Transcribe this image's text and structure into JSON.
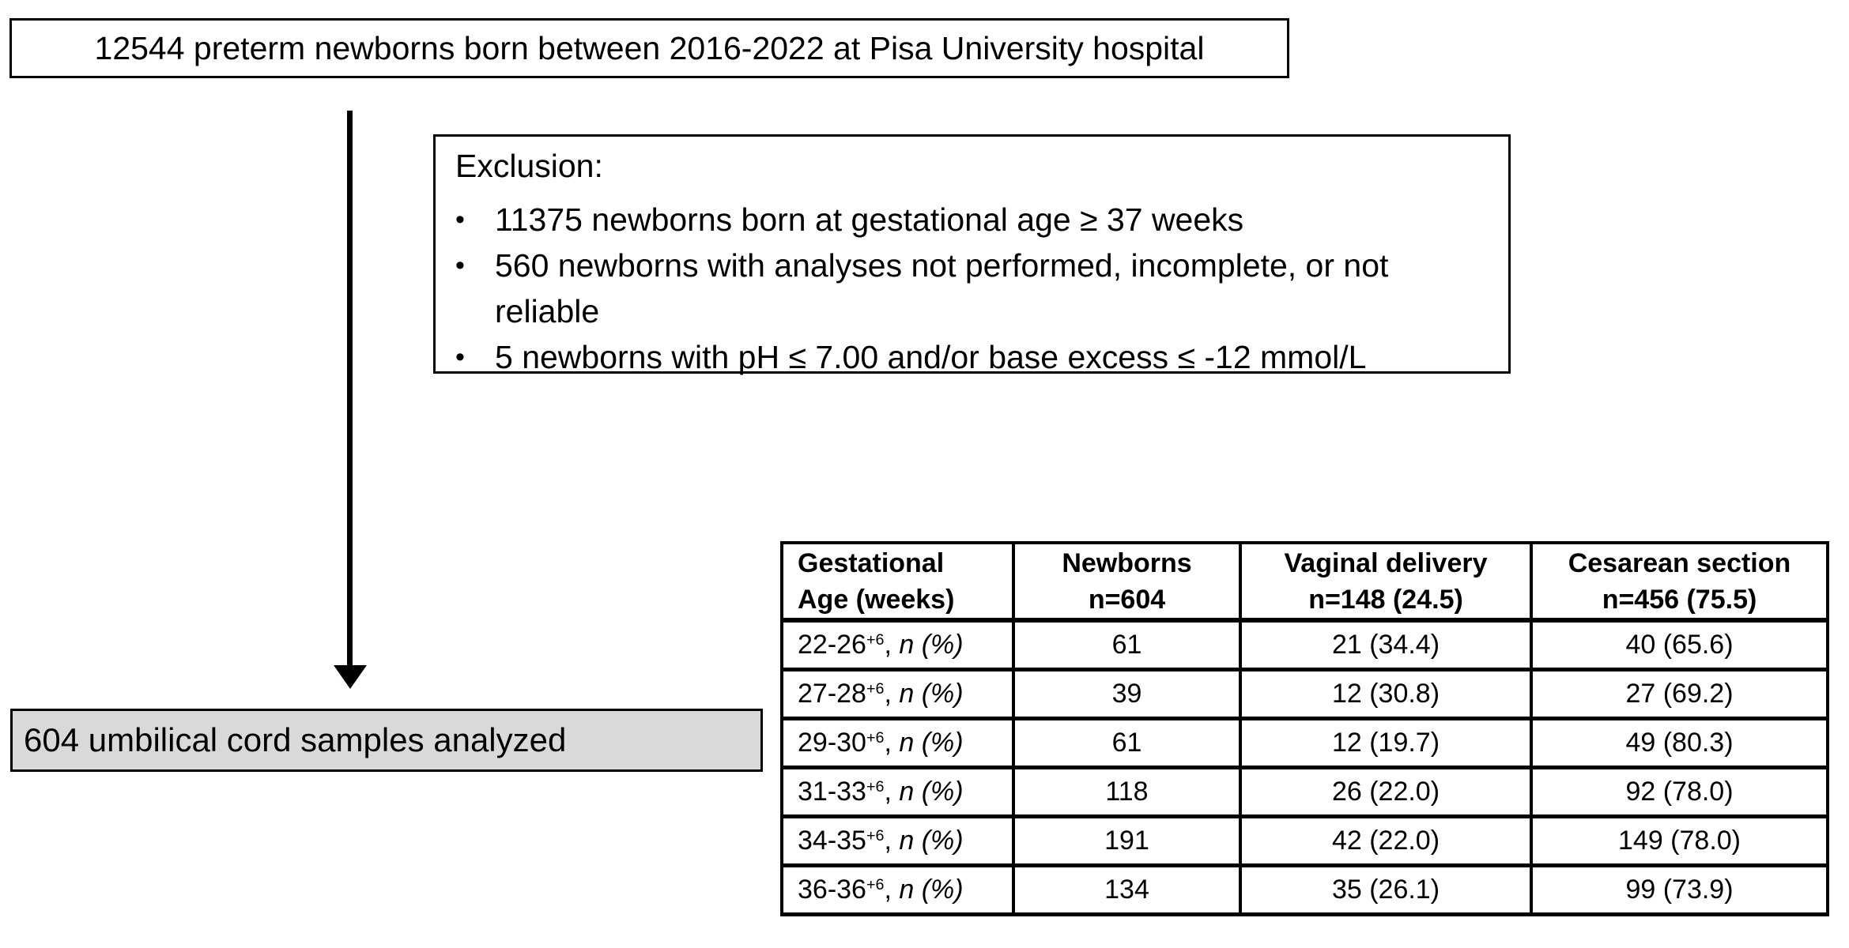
{
  "colors": {
    "background": "#ffffff",
    "border": "#000000",
    "text": "#000000",
    "result_box_fill": "#d9d9d9"
  },
  "flow": {
    "population_box": "12544 preterm newborns born between 2016-2022 at Pisa University hospital",
    "exclusion": {
      "title": "Exclusion:",
      "bullet_glyph": "•",
      "items": [
        "11375 newborns born at gestational age ≥ 37 weeks",
        "560 newborns with analyses not performed, incomplete, or not reliable",
        "5 newborns with pH ≤ 7.00 and/or base excess ≤ -12 mmol/L"
      ]
    },
    "result_box": "604 umbilical cord samples analyzed"
  },
  "table": {
    "columns": [
      {
        "line1": "Gestational",
        "line2": "Age (weeks)"
      },
      {
        "line1": "Newborns",
        "line2": "n=604"
      },
      {
        "line1": "Vaginal delivery",
        "line2": "n=148 (24.5)"
      },
      {
        "line1": "Cesarean section",
        "line2": "n=456 (75.5)"
      }
    ],
    "rows": [
      {
        "range": "22-26",
        "sup": "+6",
        "sep": ", ",
        "note": "n (%)",
        "newborns": "61",
        "vaginal": "21 (34.4)",
        "cesarean": "40 (65.6)"
      },
      {
        "range": "27-28",
        "sup": "+6",
        "sep": ", ",
        "note": "n (%)",
        "newborns": "39",
        "vaginal": "12 (30.8)",
        "cesarean": "27 (69.2)"
      },
      {
        "range": "29-30",
        "sup": "+6",
        "sep": ", ",
        "note": "n (%)",
        "newborns": "61",
        "vaginal": "12 (19.7)",
        "cesarean": "49 (80.3)"
      },
      {
        "range": "31-33",
        "sup": "+6",
        "sep": ", ",
        "note": "n (%)",
        "newborns": "118",
        "vaginal": "26 (22.0)",
        "cesarean": "92 (78.0)"
      },
      {
        "range": "34-35",
        "sup": "+6",
        "sep": ", ",
        "note": "n (%)",
        "newborns": "191",
        "vaginal": "42 (22.0)",
        "cesarean": "149 (78.0)"
      },
      {
        "range": "36-36",
        "sup": "+6",
        "sep": ", ",
        "note": "n (%)",
        "newborns": "134",
        "vaginal": "35 (26.1)",
        "cesarean": "99 (73.9)"
      }
    ]
  },
  "chart_data": {
    "type": "table",
    "columns": [
      "Gestational Age (weeks)",
      "Newborns n=604",
      "Vaginal delivery n=148 (24.5)",
      "Cesarean section n=456 (75.5)"
    ],
    "rows": [
      [
        "22-26+6, n (%)",
        "61",
        "21 (34.4)",
        "40 (65.6)"
      ],
      [
        "27-28+6, n (%)",
        "39",
        "12 (30.8)",
        "27 (69.2)"
      ],
      [
        "29-30+6, n (%)",
        "61",
        "12 (19.7)",
        "49 (80.3)"
      ],
      [
        "31-33+6, n (%)",
        "118",
        "26 (22.0)",
        "92 (78.0)"
      ],
      [
        "34-35+6, n (%)",
        "191",
        "42 (22.0)",
        "149 (78.0)"
      ],
      [
        "36-36+6, n (%)",
        "134",
        "35 (26.1)",
        "99 (73.9)"
      ]
    ]
  }
}
